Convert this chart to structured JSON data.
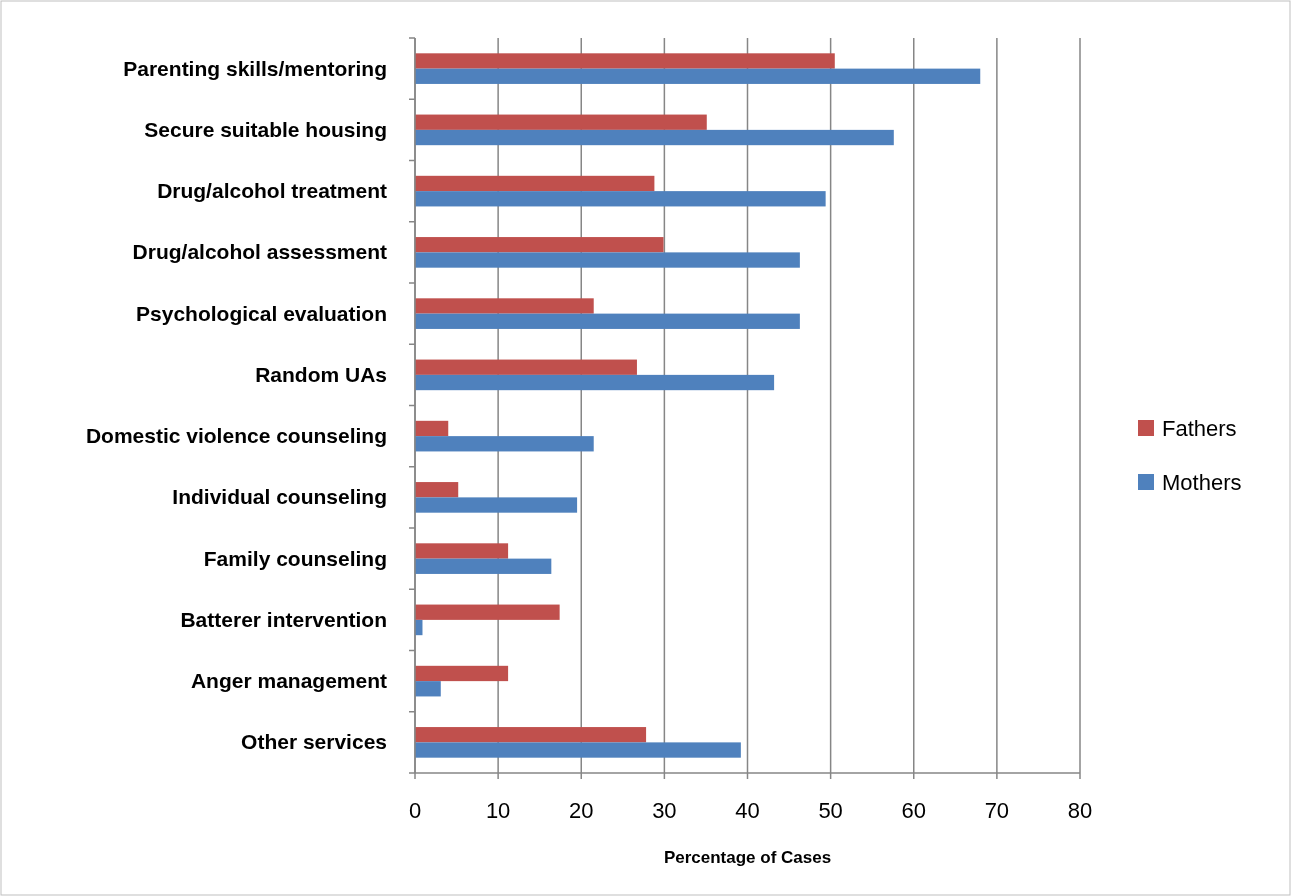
{
  "chart_data": {
    "type": "bar",
    "orientation": "horizontal",
    "xlabel": "Percentage of Cases",
    "categories": [
      "Parenting skills/mentoring",
      "Secure suitable housing",
      "Drug/alcohol treatment",
      "Drug/alcohol assessment",
      "Psychological evaluation",
      "Random UAs",
      "Domestic violence counseling",
      "Individual counseling",
      "Family counseling",
      "Batterer intervention",
      "Anger management",
      "Other services"
    ],
    "series": [
      {
        "name": "Fathers",
        "color": "#c0504d",
        "values": [
          50.5,
          35.1,
          28.8,
          29.9,
          21.5,
          26.7,
          4.0,
          5.2,
          11.2,
          17.4,
          11.2,
          27.8
        ]
      },
      {
        "name": "Mothers",
        "color": "#4f81bd",
        "values": [
          68.0,
          57.6,
          49.4,
          46.3,
          46.3,
          43.2,
          21.5,
          19.5,
          16.4,
          0.9,
          3.1,
          39.2
        ]
      }
    ],
    "xlim": [
      0,
      80
    ],
    "xticks": [
      0,
      10,
      20,
      30,
      40,
      50,
      60,
      70,
      80
    ],
    "grid": "x",
    "legend": "right"
  }
}
